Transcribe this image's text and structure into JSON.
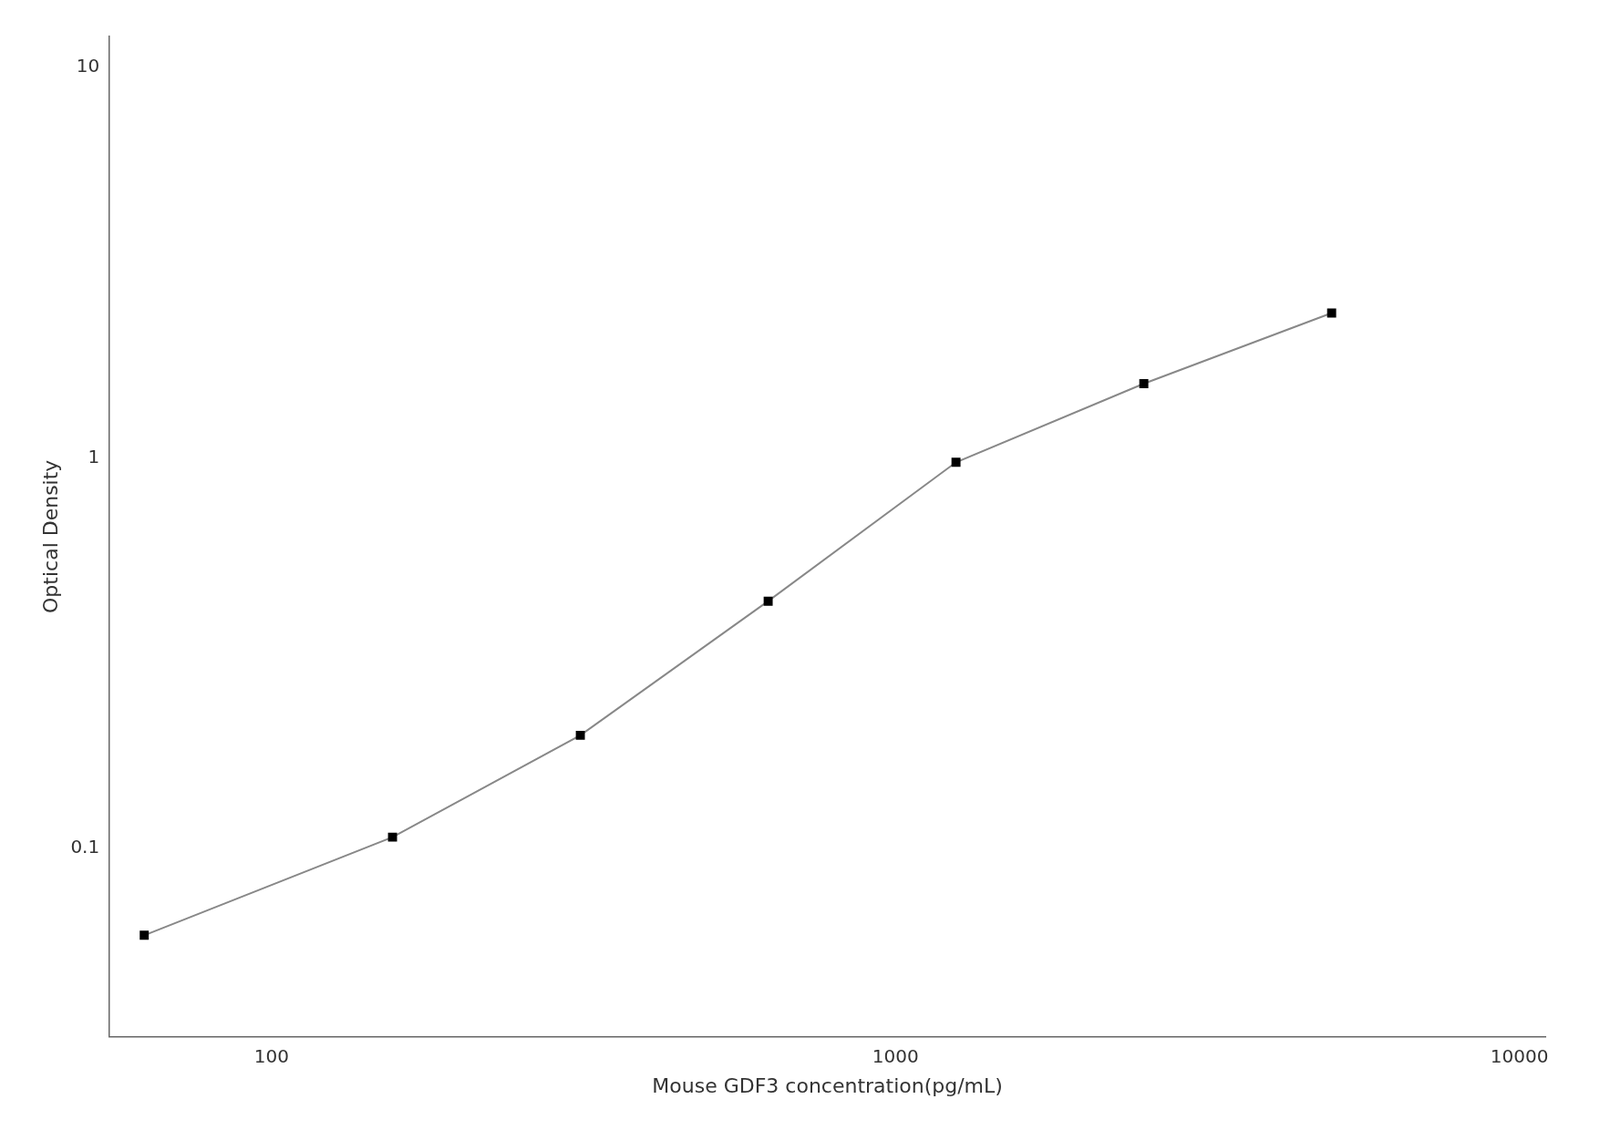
{
  "chart_data": {
    "type": "scatter",
    "x": [
      62.5,
      156.25,
      312.5,
      625,
      1250,
      2500,
      5000
    ],
    "series": [
      {
        "type": "line",
        "color": "#888888",
        "marker": "none",
        "line_style": "solid",
        "values": [
          0.06,
          0.107,
          0.195,
          0.43,
          0.975,
          1.55,
          2.35
        ]
      },
      {
        "type": "scatter",
        "color": "#000000",
        "marker": "square",
        "values": [
          0.06,
          0.107,
          0.195,
          0.43,
          0.975,
          1.55,
          2.35
        ]
      }
    ],
    "xlabel": "Mouse GDF3 concentration(pg/mL)",
    "ylabel": "Optical Density",
    "log": true,
    "xlim": [
      55,
      11000
    ],
    "ylim": [
      0.033,
      12
    ],
    "xticks": [
      100,
      1000,
      10000
    ],
    "yticks": [
      0.1,
      1,
      10
    ],
    "grid": false
  }
}
